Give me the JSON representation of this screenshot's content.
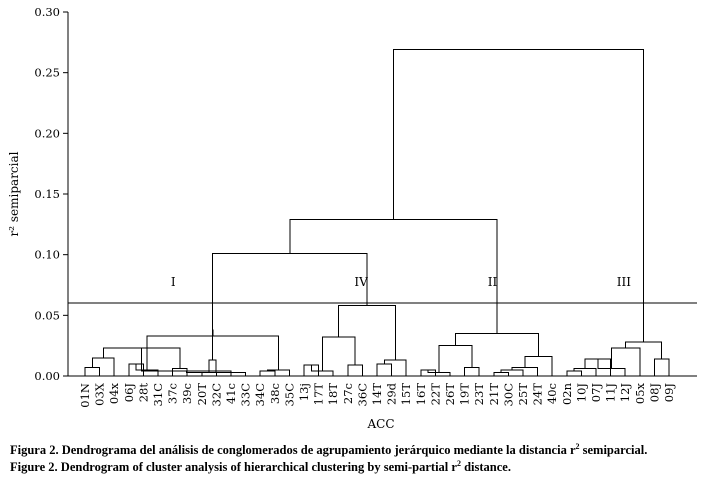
{
  "chart_data": {
    "type": "dendrogram",
    "ylabel": "r² semiparcial",
    "xlabel": "ACC",
    "ylim": [
      0,
      0.3
    ],
    "yticks": [
      "0.30",
      "0.25",
      "0.20",
      "0.15",
      "0.10",
      "0.05",
      "0.00"
    ],
    "leaves": [
      "01N",
      "03X",
      "04x",
      "06J",
      "28t",
      "31C",
      "37c",
      "39c",
      "20T",
      "32C",
      "41c",
      "33C",
      "34C",
      "38c",
      "35C",
      "13j",
      "17T",
      "18T",
      "27c",
      "36C",
      "14T",
      "29d",
      "15T",
      "16T",
      "22T",
      "26T",
      "19T",
      "23T",
      "21T",
      "30C",
      "25T",
      "24T",
      "40c",
      "02n",
      "10J",
      "07J",
      "11J",
      "12J",
      "05x",
      "08J",
      "09J"
    ],
    "cut_height": 0.06,
    "clusters": [
      {
        "label": "I",
        "leaves": [
          "01N",
          "03X",
          "04x",
          "06J",
          "28t",
          "31C",
          "37c",
          "39c",
          "20T",
          "32C",
          "41c",
          "33C",
          "34C",
          "38c",
          "35C"
        ]
      },
      {
        "label": "IV",
        "leaves": [
          "13j",
          "17T",
          "18T",
          "27c",
          "36C",
          "14T",
          "29d",
          "15T"
        ]
      },
      {
        "label": "II",
        "leaves": [
          "16T",
          "22T",
          "26T",
          "19T",
          "23T",
          "21T",
          "30C",
          "25T",
          "24T",
          "40c"
        ]
      },
      {
        "label": "III",
        "leaves": [
          "02n",
          "10J",
          "07J",
          "11J",
          "12J",
          "05x",
          "08J",
          "09J"
        ]
      }
    ],
    "merges": [
      [
        "01N",
        "03X",
        0.007
      ],
      [
        "04x",
        "M0",
        0.015
      ],
      [
        "06J",
        "28t",
        0.01
      ],
      [
        "37c",
        "39c",
        0.006
      ],
      [
        "31C",
        "M2",
        0.005
      ],
      [
        "M1",
        "M3",
        0.023
      ],
      [
        "20T",
        "32C",
        0.003
      ],
      [
        "41c",
        "M5",
        0.004
      ],
      [
        "34C",
        "38c",
        0.004
      ],
      [
        "33C",
        "M7",
        0.003
      ],
      [
        "M8",
        "35C",
        0.005
      ],
      [
        "M6",
        "M9",
        0.013
      ],
      [
        "M4",
        "M10",
        0.033
      ],
      [
        "M11",
        "M12",
        0.038
      ],
      [
        "13j",
        "17T",
        0.009
      ],
      [
        "M14",
        "18T",
        0.004
      ],
      [
        "27c",
        "36C",
        0.009
      ],
      [
        "M15",
        "M16",
        0.032
      ],
      [
        "14T",
        "29d",
        0.01
      ],
      [
        "M18",
        "15T",
        0.013
      ],
      [
        "M17",
        "M19",
        0.058
      ],
      [
        "M13",
        "M20",
        0.101
      ],
      [
        "16T",
        "22T",
        0.005
      ],
      [
        "26T",
        "M22",
        0.003
      ],
      [
        "19T",
        "23T",
        0.007
      ],
      [
        "M23",
        "M24",
        0.025
      ],
      [
        "21T",
        "30C",
        0.003
      ],
      [
        "M26",
        "25T",
        0.005
      ],
      [
        "M27",
        "24T",
        0.007
      ],
      [
        "M28",
        "40c",
        0.016
      ],
      [
        "M25",
        "M29",
        0.035
      ],
      [
        "M21",
        "M30",
        0.129
      ],
      [
        "02n",
        "10J",
        0.004
      ],
      [
        "M32",
        "07J",
        0.006
      ],
      [
        "M33",
        "11J",
        0.014
      ],
      [
        "M34",
        "12J",
        0.006
      ],
      [
        "M35",
        "05x",
        0.023
      ],
      [
        "08J",
        "09J",
        0.014
      ],
      [
        "M36",
        "M37",
        0.028
      ],
      [
        "M31",
        "M38",
        0.269
      ]
    ]
  },
  "caption": {
    "es_pre": "Figura 2. Dendrograma del análisis de conglomerados de agrupamiento jerárquico mediante la distancia r",
    "es_sup": "2",
    "es_post": " semiparcial.",
    "en_pre": "Figure 2. Dendrogram of cluster analysis of hierarchical clustering by semi-partial r",
    "en_sup": "2",
    "en_post": " distance."
  }
}
